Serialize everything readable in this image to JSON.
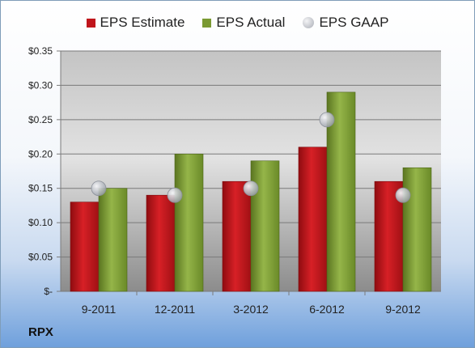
{
  "chart_data": {
    "type": "bar",
    "categories": [
      "9-2011",
      "12-2011",
      "3-2012",
      "6-2012",
      "9-2012"
    ],
    "series": [
      {
        "name": "EPS Estimate",
        "values": [
          0.13,
          0.14,
          0.16,
          0.21,
          0.16
        ],
        "color": "#c0151b"
      },
      {
        "name": "EPS Actual",
        "values": [
          0.15,
          0.2,
          0.19,
          0.29,
          0.18
        ],
        "color": "#7a9a32"
      },
      {
        "name": "EPS GAAP",
        "values": [
          0.15,
          0.14,
          0.15,
          0.25,
          0.14
        ],
        "color": "#b8bcc4",
        "marker": "circle"
      }
    ],
    "ylim": [
      0,
      0.35
    ],
    "yticks": [
      0,
      0.05,
      0.1,
      0.15,
      0.2,
      0.25,
      0.3,
      0.35
    ],
    "ytick_labels": [
      "$-",
      "$0.05",
      "$0.10",
      "$0.15",
      "$0.20",
      "$0.25",
      "$0.30",
      "$0.35"
    ],
    "grid": true,
    "legend_position": "top"
  },
  "ticker": "RPX"
}
